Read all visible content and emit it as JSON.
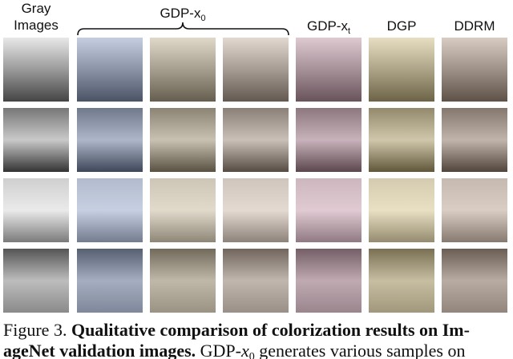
{
  "headers": [
    {
      "lines": [
        "Gray",
        "Images"
      ]
    },
    {
      "text": "GDP-x",
      "sub": "0"
    },
    {
      "text": "GDP-x",
      "sub": "t"
    },
    {
      "text": "DGP"
    },
    {
      "text": "DDRM"
    }
  ],
  "caption": {
    "line1": {
      "label": "Figure 3.",
      "bold": "Qualitative comparison of colorization results on Im-"
    },
    "line2": {
      "bold": "ageNet validation images.",
      "pre": "GDP-",
      "math": "x",
      "math_sub": "0",
      "post": " generates various samples on"
    }
  }
}
